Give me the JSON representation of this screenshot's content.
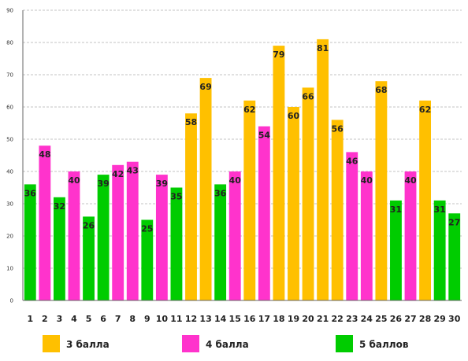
{
  "chart_data": {
    "type": "bar",
    "categories": [
      "1",
      "2",
      "3",
      "4",
      "5",
      "6",
      "7",
      "8",
      "9",
      "10",
      "11",
      "12",
      "13",
      "14",
      "15",
      "16",
      "17",
      "18",
      "19",
      "20",
      "21",
      "22",
      "23",
      "24",
      "25",
      "26",
      "27",
      "28",
      "29",
      "30"
    ],
    "values": [
      36,
      48,
      32,
      40,
      26,
      39,
      42,
      43,
      25,
      39,
      35,
      58,
      69,
      36,
      40,
      62,
      54,
      79,
      60,
      66,
      81,
      56,
      46,
      40,
      68,
      31,
      40,
      62,
      31,
      27
    ],
    "groups": [
      2,
      1,
      2,
      1,
      2,
      2,
      1,
      1,
      2,
      1,
      2,
      0,
      0,
      2,
      1,
      0,
      1,
      0,
      0,
      0,
      0,
      0,
      1,
      1,
      0,
      2,
      1,
      0,
      2,
      2
    ],
    "series": [
      {
        "name": "3 балла",
        "color": "#FFC000"
      },
      {
        "name": "4 балла",
        "color": "#FF33CC"
      },
      {
        "name": "5 баллов",
        "color": "#00CC00"
      }
    ],
    "ylim": [
      0,
      90
    ],
    "yticks": [
      0,
      10,
      20,
      30,
      40,
      50,
      60,
      70,
      80,
      90
    ],
    "grid": true,
    "legend_position": "bottom",
    "title": "",
    "xlabel": "",
    "ylabel": ""
  }
}
